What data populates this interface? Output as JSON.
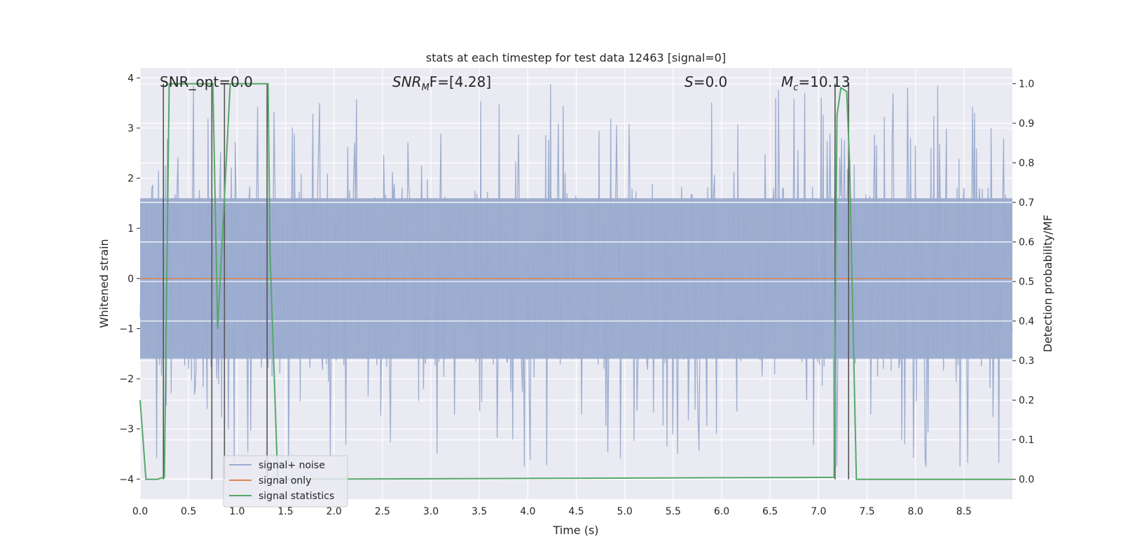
{
  "chart_data": {
    "type": "line",
    "title": "stats at each timestep for test data 12463 [signal=0]",
    "xlabel": "Time (s)",
    "ylabel_left": "Whitened strain",
    "ylabel_right": "Detection probability/MF",
    "xlim": [
      0.0,
      9.0
    ],
    "ylim_left": [
      -4.4,
      4.2
    ],
    "ylim_right": [
      -0.05,
      1.04
    ],
    "x_ticks": [
      0.0,
      0.5,
      1.0,
      1.5,
      2.0,
      2.5,
      3.0,
      3.5,
      4.0,
      4.5,
      5.0,
      5.5,
      6.0,
      6.5,
      7.0,
      7.5,
      8.0,
      8.5
    ],
    "x_tick_labels": [
      "0.0",
      "0.5",
      "1.0",
      "1.5",
      "2.0",
      "2.5",
      "3.0",
      "3.5",
      "4.0",
      "4.5",
      "5.0",
      "5.5",
      "6.0",
      "6.5",
      "7.0",
      "7.5",
      "8.0",
      "8.5"
    ],
    "y_left_ticks": [
      4,
      3,
      2,
      1,
      0,
      -1,
      -2,
      -3,
      -4
    ],
    "y_left_tick_labels": [
      "4",
      "3",
      "2",
      "1",
      "0",
      "−1",
      "−2",
      "−3",
      "−4"
    ],
    "y_right_ticks": [
      1.0,
      0.9,
      0.8,
      0.7,
      0.6,
      0.5,
      0.4,
      0.3,
      0.2,
      0.1,
      0.0
    ],
    "y_right_tick_labels": [
      "1.0",
      "0.9",
      "0.8",
      "0.7",
      "0.6",
      "0.5",
      "0.4",
      "0.3",
      "0.2",
      "0.1",
      "0.0"
    ],
    "grid": true,
    "annotations": {
      "snr_opt": "SNR_opt=0.0",
      "snr_mf_prefix": "SNR",
      "snr_mf_sub": "M",
      "snr_mf_rest": "F=[4.28]",
      "s_italic": "S",
      "s_rest": "=0.0",
      "mc_italic": "M",
      "mc_sub": "c",
      "mc_rest": "=10.13"
    },
    "series": [
      {
        "name": "signal+ noise",
        "color": "#9aabcf",
        "axis": "left",
        "description": "whitened strain noise, approx. range -3.7 to 3.9",
        "amplitude_core": 1.6,
        "amplitude_max": 3.9,
        "sample_count": 900
      },
      {
        "name": "signal only",
        "color": "#dd8452",
        "axis": "left",
        "x": [
          0.0,
          9.0
        ],
        "values": [
          0.0,
          0.0
        ]
      },
      {
        "name": "signal statistics",
        "color": "#55a868",
        "axis": "right",
        "x": [
          0.0,
          0.06,
          0.18,
          0.24,
          0.25,
          0.3,
          0.72,
          0.75,
          0.8,
          0.93,
          1.32,
          1.34,
          1.42,
          7.16,
          7.19,
          7.23,
          7.29,
          7.32,
          7.39,
          9.0
        ],
        "values": [
          0.2,
          0.0,
          0.0,
          0.005,
          0.005,
          1.0,
          1.0,
          1.0,
          0.38,
          1.0,
          1.0,
          0.57,
          0.0,
          0.005,
          0.92,
          0.99,
          0.98,
          0.8,
          0.0,
          0.0
        ]
      },
      {
        "name": "detection markers",
        "color": "#555555",
        "axis": "right",
        "x": [
          0.24,
          0.74,
          0.87,
          1.31,
          7.17,
          7.31
        ],
        "values": [
          1.0,
          1.0,
          1.0,
          1.0,
          1.0,
          1.0
        ]
      }
    ],
    "legend": {
      "position": "lower-left",
      "entries": [
        "signal+ noise",
        "signal only",
        "signal statistics"
      ]
    }
  },
  "colors": {
    "plot_bg": "#eaeaf2",
    "grid": "#ffffff",
    "noise": "#9aabcf",
    "signal": "#dd8452",
    "stats": "#55a868",
    "markers": "#555555"
  }
}
